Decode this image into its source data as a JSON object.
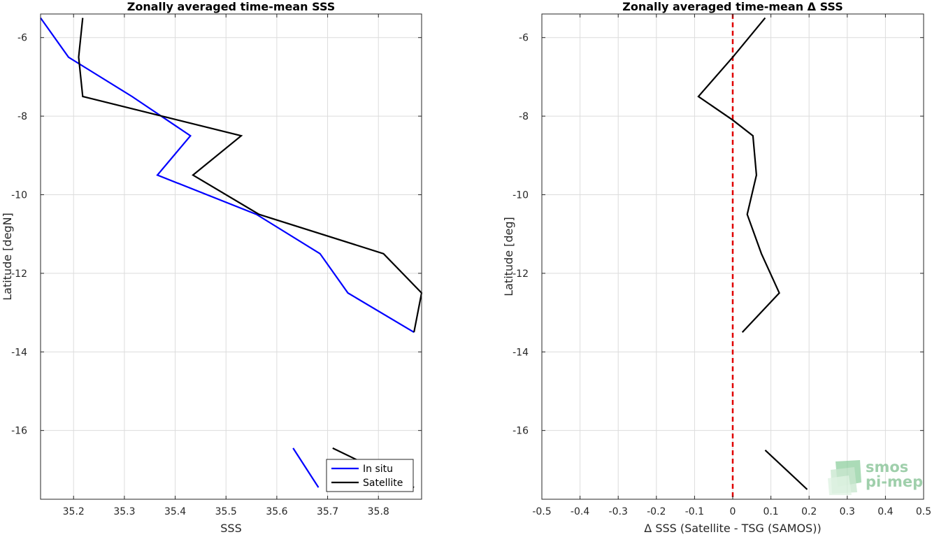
{
  "chart_data": [
    {
      "type": "line",
      "title": "Zonally averaged time-mean SSS",
      "xlabel": "SSS",
      "ylabel": "Latitude [degN]",
      "xlim": [
        35.135,
        35.885
      ],
      "ylim": [
        -17.75,
        -5.4
      ],
      "xticks": [
        35.2,
        35.3,
        35.4,
        35.5,
        35.6,
        35.7,
        35.8
      ],
      "xtick_labels": [
        "35.2",
        "35.3",
        "35.4",
        "35.5",
        "35.6",
        "35.7",
        "35.8"
      ],
      "yticks": [
        -6,
        -8,
        -10,
        -12,
        -14,
        -16
      ],
      "ytick_labels": [
        "-6",
        "-8",
        "-10",
        "-12",
        "-14",
        "-16"
      ],
      "grid": true,
      "legend_position": "bottom-right",
      "series": [
        {
          "name": "In situ",
          "color": "#0000ff",
          "segments": [
            [
              [
                35.135,
                -5.5
              ],
              [
                35.19,
                -6.5
              ],
              [
                35.315,
                -7.5
              ],
              [
                35.43,
                -8.5
              ],
              [
                35.365,
                -9.5
              ],
              [
                35.56,
                -10.5
              ],
              [
                35.685,
                -11.5
              ],
              [
                35.74,
                -12.5
              ],
              [
                35.87,
                -13.5
              ]
            ],
            [
              [
                35.632,
                -16.45
              ],
              [
                35.682,
                -17.45
              ]
            ]
          ]
        },
        {
          "name": "Satellite",
          "color": "#000000",
          "segments": [
            [
              [
                35.218,
                -5.5
              ],
              [
                35.21,
                -6.5
              ],
              [
                35.218,
                -7.5
              ],
              [
                35.53,
                -8.5
              ],
              [
                35.435,
                -9.5
              ],
              [
                35.565,
                -10.5
              ],
              [
                35.81,
                -11.5
              ],
              [
                35.885,
                -12.5
              ],
              [
                35.87,
                -13.5
              ]
            ],
            [
              [
                35.71,
                -16.45
              ],
              [
                35.87,
                -17.45
              ]
            ]
          ]
        }
      ]
    },
    {
      "type": "line",
      "title": "Zonally averaged time-mean Δ SSS",
      "xlabel": "Δ SSS (Satellite - TSG (SAMOS))",
      "ylabel": "Latitude [deg]",
      "xlim": [
        -0.5,
        0.5
      ],
      "ylim": [
        -17.75,
        -5.4
      ],
      "xticks": [
        -0.5,
        -0.4,
        -0.3,
        -0.2,
        -0.1,
        0,
        0.1,
        0.2,
        0.3,
        0.4,
        0.5
      ],
      "xtick_labels": [
        "-0.5",
        "-0.4",
        "-0.3",
        "-0.2",
        "-0.1",
        "0",
        "0.1",
        "0.2",
        "0.3",
        "0.4",
        "0.5"
      ],
      "yticks": [
        -6,
        -8,
        -10,
        -12,
        -14,
        -16
      ],
      "ytick_labels": [
        "-6",
        "-8",
        "-10",
        "-12",
        "-14",
        "-16"
      ],
      "grid": true,
      "reference_line": {
        "x": 0,
        "color": "#e00000",
        "style": "dashed"
      },
      "series": [
        {
          "color": "#000000",
          "segments": [
            [
              [
                0.085,
                -5.5
              ],
              [
                0.0,
                -6.5
              ],
              [
                -0.09,
                -7.5
              ],
              [
                0.0,
                -8.1
              ],
              [
                0.053,
                -8.5
              ],
              [
                0.062,
                -9.5
              ],
              [
                0.038,
                -10.5
              ],
              [
                0.075,
                -11.5
              ],
              [
                0.122,
                -12.5
              ],
              [
                0.025,
                -13.5
              ]
            ],
            [
              [
                0.085,
                -16.5
              ],
              [
                0.195,
                -17.5
              ]
            ]
          ]
        }
      ]
    }
  ],
  "watermark": {
    "line1": "smos",
    "line2": "pi-mep",
    "color": "#7fbf8f"
  }
}
